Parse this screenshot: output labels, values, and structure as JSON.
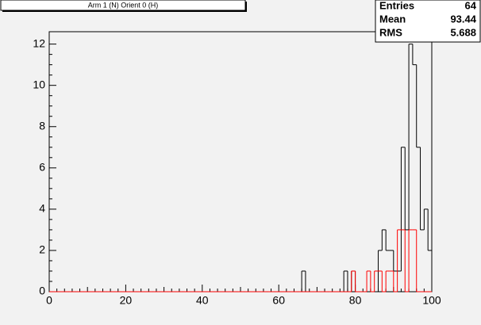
{
  "chart_data": {
    "type": "histogram",
    "title": "Arm 1 (N) Orient 0 (H)",
    "stats": [
      {
        "label": "Entries",
        "value": 64
      },
      {
        "label": "Mean",
        "value": 93.44
      },
      {
        "label": "RMS",
        "value": 5.688
      }
    ],
    "bins": [
      0,
      1,
      2,
      3,
      4,
      5,
      6,
      7,
      8,
      9,
      10,
      11,
      12,
      13,
      14,
      15,
      16,
      17,
      18,
      19,
      20,
      21,
      22,
      23,
      24,
      25,
      26,
      27,
      28,
      29,
      30,
      31,
      32,
      33,
      34,
      35,
      36,
      37,
      38,
      39,
      40,
      41,
      42,
      43,
      44,
      45,
      46,
      47,
      48,
      49,
      50,
      51,
      52,
      53,
      54,
      55,
      56,
      57,
      58,
      59,
      60,
      61,
      62,
      63,
      64,
      65,
      66,
      67,
      68,
      69,
      70,
      71,
      72,
      73,
      74,
      75,
      76,
      77,
      78,
      79,
      80,
      81,
      82,
      83,
      84,
      85,
      86,
      87,
      88,
      89,
      90,
      91,
      92,
      93,
      94,
      95,
      96,
      97,
      98,
      99,
      100
    ],
    "series": [
      {
        "color": "#000000",
        "values": [
          0,
          0,
          0,
          0,
          0,
          0,
          0,
          0,
          0,
          0,
          0,
          0,
          0,
          0,
          0,
          0,
          0,
          0,
          0,
          0,
          0,
          0,
          0,
          0,
          0,
          0,
          0,
          0,
          0,
          0,
          0,
          0,
          0,
          0,
          0,
          0,
          0,
          0,
          0,
          0,
          0,
          0,
          0,
          0,
          0,
          0,
          0,
          0,
          0,
          0,
          0,
          0,
          0,
          0,
          0,
          0,
          0,
          0,
          0,
          0,
          0,
          0,
          0,
          0,
          0,
          0,
          1,
          0,
          0,
          0,
          0,
          0,
          0,
          0,
          0,
          0,
          0,
          1,
          0,
          1,
          0,
          0,
          0,
          0,
          0,
          0,
          2,
          3,
          2,
          2,
          1,
          1,
          7,
          3,
          12,
          11,
          7,
          3,
          4,
          2
        ]
      },
      {
        "color": "#ff0000",
        "values": [
          0,
          0,
          0,
          0,
          0,
          0,
          0,
          0,
          0,
          0,
          0,
          0,
          0,
          0,
          0,
          0,
          0,
          0,
          0,
          0,
          0,
          0,
          0,
          0,
          0,
          0,
          0,
          0,
          0,
          0,
          0,
          0,
          0,
          0,
          0,
          0,
          0,
          0,
          0,
          0,
          0,
          0,
          0,
          0,
          0,
          0,
          0,
          0,
          0,
          0,
          0,
          0,
          0,
          0,
          0,
          0,
          0,
          0,
          0,
          0,
          0,
          0,
          0,
          0,
          0,
          0,
          0,
          0,
          0,
          0,
          0,
          0,
          0,
          0,
          0,
          0,
          0,
          0,
          0,
          1,
          0,
          0,
          0,
          1,
          0,
          1,
          1,
          0,
          1,
          1,
          0,
          3,
          3,
          0,
          3,
          3,
          0,
          0,
          0,
          0
        ]
      }
    ],
    "xlim": [
      0,
      100
    ],
    "xticks": [
      0,
      20,
      40,
      60,
      80,
      100
    ],
    "ylim": [
      0,
      12.6
    ],
    "yticks": [
      0,
      2,
      4,
      6,
      8,
      10,
      12
    ]
  }
}
